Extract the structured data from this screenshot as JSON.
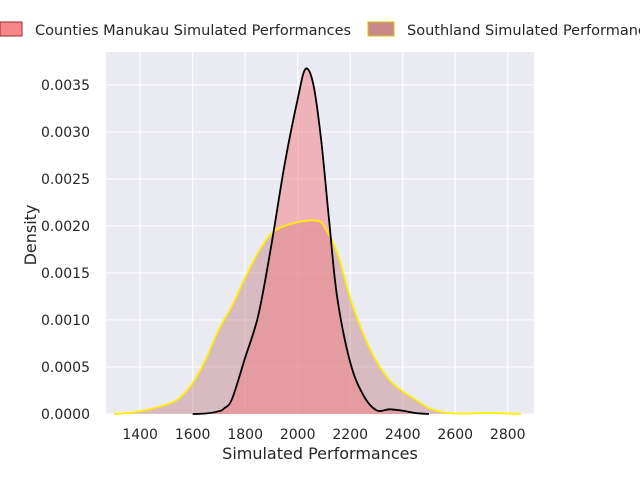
{
  "chart_data": {
    "type": "area",
    "title": "",
    "xlabel": "Simulated Performances",
    "ylabel": "Density",
    "xlim": [
      1270,
      2900
    ],
    "ylim": [
      0,
      0.00385
    ],
    "xticks": [
      1400,
      1600,
      1800,
      2000,
      2200,
      2400,
      2600,
      2800
    ],
    "yticks": [
      0.0,
      0.0005,
      0.001,
      0.0015,
      0.002,
      0.0025,
      0.003,
      0.0035
    ],
    "xtick_labels": [
      "1400",
      "1600",
      "1800",
      "2000",
      "2200",
      "2400",
      "2600",
      "2800"
    ],
    "ytick_labels": [
      "0.0000",
      "0.0005",
      "0.0010",
      "0.0015",
      "0.0020",
      "0.0025",
      "0.0030",
      "0.0035"
    ],
    "grid": true,
    "background": "#eaeaf2",
    "legend_position": "top",
    "series": [
      {
        "name": "Southland Simulated Performances",
        "fill": "#c08283",
        "fill_opacity": 0.45,
        "line": "#ffee00",
        "x": [
          1300,
          1350,
          1400,
          1450,
          1500,
          1550,
          1600,
          1650,
          1700,
          1750,
          1800,
          1850,
          1900,
          1950,
          2000,
          2050,
          2080,
          2100,
          2150,
          2200,
          2250,
          2300,
          2350,
          2400,
          2450,
          2500,
          2550,
          2600,
          2650,
          2700,
          2750,
          2800,
          2850
        ],
        "y": [
          0,
          1e-05,
          3e-05,
          6e-05,
          0.0001,
          0.00017,
          0.00033,
          0.00058,
          0.0009,
          0.00115,
          0.00145,
          0.00172,
          0.00192,
          0.002,
          0.00204,
          0.00206,
          0.00205,
          0.002,
          0.00172,
          0.00123,
          0.00085,
          0.00056,
          0.00036,
          0.00024,
          0.00015,
          6e-05,
          2e-05,
          5e-06,
          5e-06,
          1e-05,
          1e-05,
          5e-06,
          0
        ]
      },
      {
        "name": "Counties Manukau Simulated Performances",
        "fill": "#f27b82",
        "fill_opacity": 0.5,
        "line": "#000000",
        "x": [
          1600,
          1650,
          1700,
          1720,
          1750,
          1800,
          1850,
          1900,
          1950,
          2000,
          2030,
          2060,
          2090,
          2120,
          2150,
          2200,
          2250,
          2300,
          2350,
          2400,
          2450,
          2500
        ],
        "y": [
          0,
          5e-06,
          3e-05,
          6e-05,
          0.00016,
          0.0006,
          0.00105,
          0.0018,
          0.00265,
          0.00335,
          0.00367,
          0.0035,
          0.0029,
          0.00205,
          0.00125,
          0.00055,
          0.0002,
          4e-05,
          5e-05,
          3.5e-05,
          1e-05,
          0
        ]
      }
    ]
  }
}
